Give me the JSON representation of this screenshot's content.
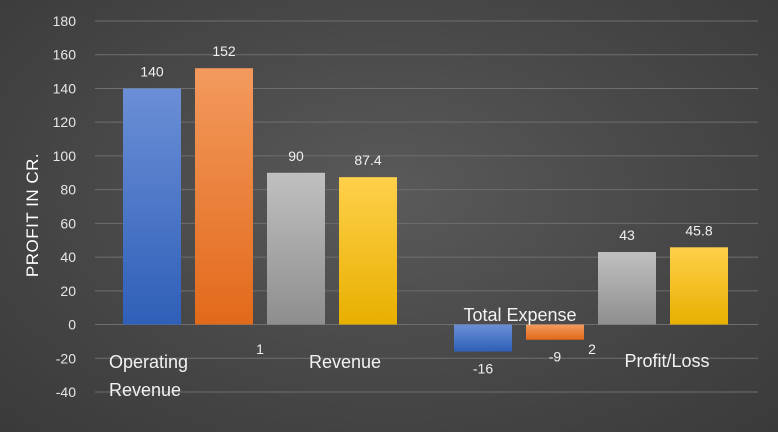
{
  "chart_data": {
    "type": "bar",
    "title": "",
    "ylabel": "PROFIT IN CR.",
    "ylim": [
      -40,
      180
    ],
    "yticks": [
      -40,
      -20,
      0,
      20,
      40,
      60,
      80,
      100,
      120,
      140,
      160,
      180
    ],
    "grid": true,
    "legend": "none",
    "categories": [
      "Operating Revenue",
      "Total Expense",
      "Profit/Loss"
    ],
    "stray_labels": [
      "1",
      "Revenue",
      "2"
    ],
    "series": [
      {
        "values": [
          140,
          -16,
          null
        ],
        "color": "#4472C4"
      },
      {
        "values": [
          152,
          -9,
          null
        ],
        "color": "#ED7D31"
      },
      {
        "values": [
          90,
          null,
          43
        ],
        "color": "#A5A5A5"
      },
      {
        "values": [
          87.4,
          null,
          45.8
        ],
        "color": "#FFC000"
      }
    ]
  }
}
